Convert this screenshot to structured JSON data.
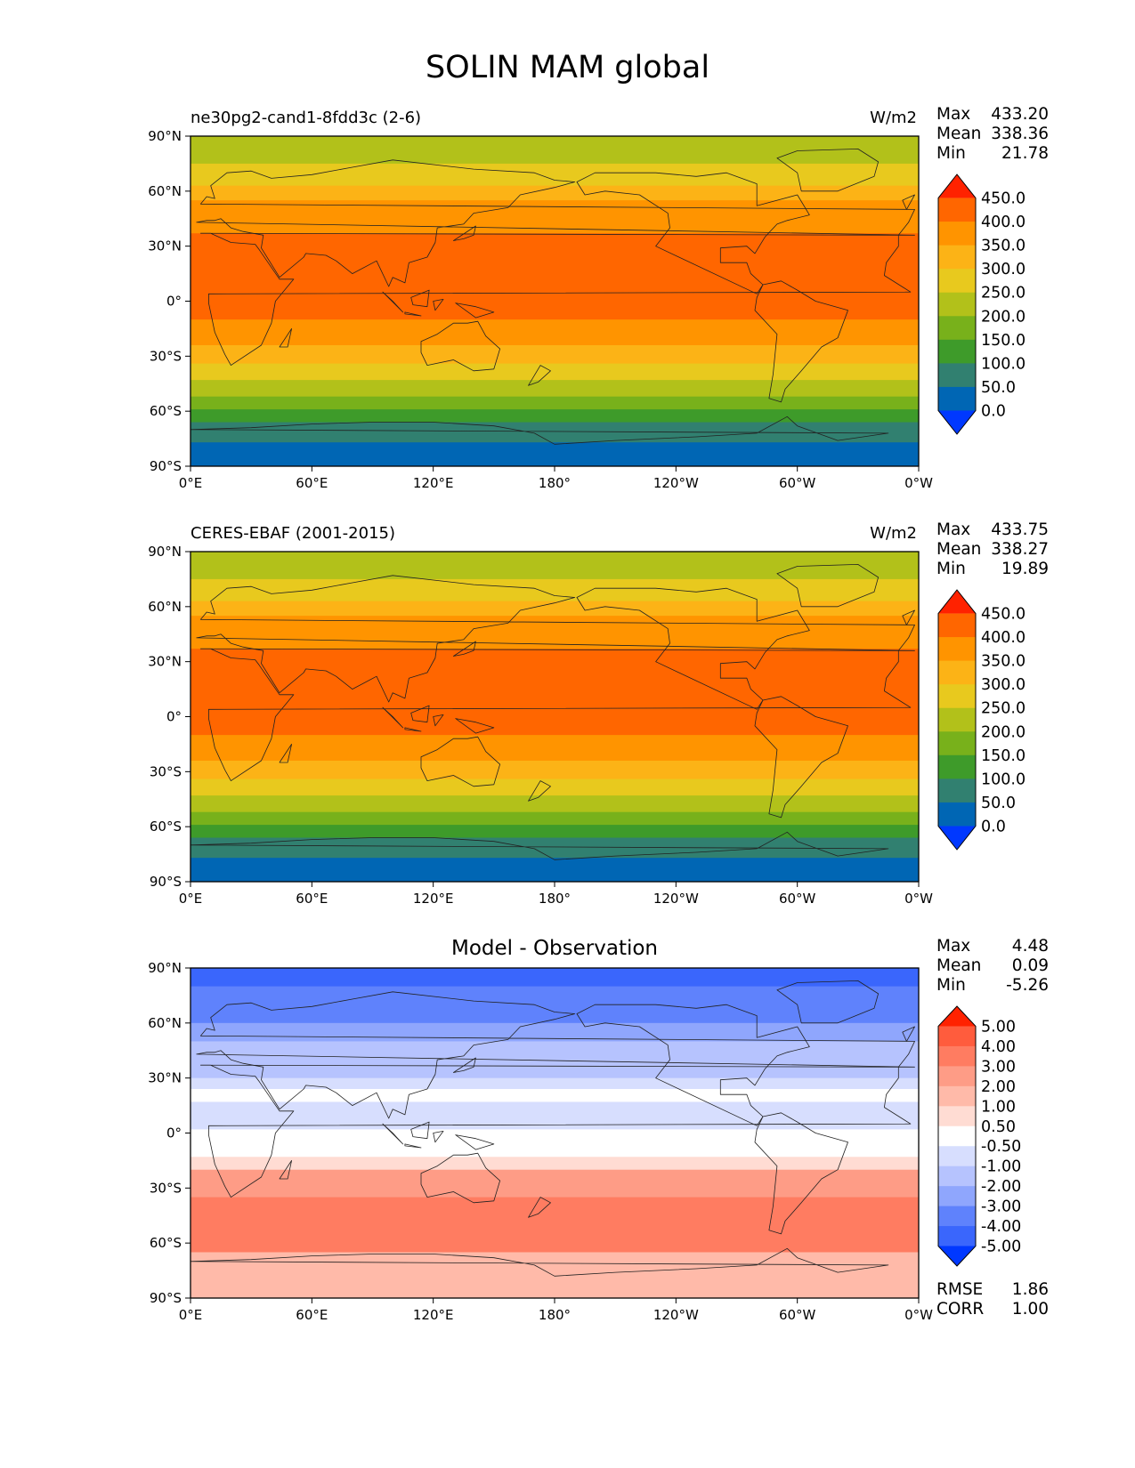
{
  "title": "SOLIN MAM global",
  "panels": [
    {
      "id": "model",
      "title_left": "ne30pg2-cand1-8fdd3c (2-6)",
      "title_center": "",
      "units": "W/m2",
      "stats": [
        {
          "label": "Max",
          "value": "433.20"
        },
        {
          "label": "Mean",
          "value": "338.36"
        },
        {
          "label": "Min",
          "value": "21.78"
        }
      ],
      "colorbar_levels": [
        "450.0",
        "400.0",
        "350.0",
        "300.0",
        "250.0",
        "200.0",
        "150.0",
        "100.0",
        "50.0",
        "0.0"
      ],
      "colorbar_colors": [
        "#ff2200",
        "#ff6600",
        "#ff9400",
        "#fcb316",
        "#e8c91e",
        "#b2c11a",
        "#78b11b",
        "#3e9b2a",
        "#318070",
        "#0066b4",
        "#0038ff"
      ],
      "bands": [
        {
          "lat_top": 90,
          "lat_bottom": 75,
          "color": "#b2c11a"
        },
        {
          "lat_top": 75,
          "lat_bottom": 63,
          "color": "#e8c91e"
        },
        {
          "lat_top": 63,
          "lat_bottom": 55,
          "color": "#fcb316"
        },
        {
          "lat_top": 55,
          "lat_bottom": 37,
          "color": "#ff9400"
        },
        {
          "lat_top": 37,
          "lat_bottom": -10,
          "color": "#ff6600"
        },
        {
          "lat_top": -10,
          "lat_bottom": -24,
          "color": "#ff9400"
        },
        {
          "lat_top": -24,
          "lat_bottom": -34,
          "color": "#fcb316"
        },
        {
          "lat_top": -34,
          "lat_bottom": -43,
          "color": "#e8c91e"
        },
        {
          "lat_top": -43,
          "lat_bottom": -52,
          "color": "#b2c11a"
        },
        {
          "lat_top": -52,
          "lat_bottom": -59,
          "color": "#78b11b"
        },
        {
          "lat_top": -59,
          "lat_bottom": -66,
          "color": "#3e9b2a"
        },
        {
          "lat_top": -66,
          "lat_bottom": -77,
          "color": "#318070"
        },
        {
          "lat_top": -77,
          "lat_bottom": -90,
          "color": "#0066b4"
        }
      ]
    },
    {
      "id": "obs",
      "title_left": "CERES-EBAF (2001-2015)",
      "title_center": "",
      "units": "W/m2",
      "stats": [
        {
          "label": "Max",
          "value": "433.75"
        },
        {
          "label": "Mean",
          "value": "338.27"
        },
        {
          "label": "Min",
          "value": "19.89"
        }
      ],
      "colorbar_levels": [
        "450.0",
        "400.0",
        "350.0",
        "300.0",
        "250.0",
        "200.0",
        "150.0",
        "100.0",
        "50.0",
        "0.0"
      ],
      "colorbar_colors": [
        "#ff2200",
        "#ff6600",
        "#ff9400",
        "#fcb316",
        "#e8c91e",
        "#b2c11a",
        "#78b11b",
        "#3e9b2a",
        "#318070",
        "#0066b4",
        "#0038ff"
      ],
      "bands": [
        {
          "lat_top": 90,
          "lat_bottom": 75,
          "color": "#b2c11a"
        },
        {
          "lat_top": 75,
          "lat_bottom": 63,
          "color": "#e8c91e"
        },
        {
          "lat_top": 63,
          "lat_bottom": 55,
          "color": "#fcb316"
        },
        {
          "lat_top": 55,
          "lat_bottom": 37,
          "color": "#ff9400"
        },
        {
          "lat_top": 37,
          "lat_bottom": -10,
          "color": "#ff6600"
        },
        {
          "lat_top": -10,
          "lat_bottom": -24,
          "color": "#ff9400"
        },
        {
          "lat_top": -24,
          "lat_bottom": -34,
          "color": "#fcb316"
        },
        {
          "lat_top": -34,
          "lat_bottom": -43,
          "color": "#e8c91e"
        },
        {
          "lat_top": -43,
          "lat_bottom": -52,
          "color": "#b2c11a"
        },
        {
          "lat_top": -52,
          "lat_bottom": -59,
          "color": "#78b11b"
        },
        {
          "lat_top": -59,
          "lat_bottom": -66,
          "color": "#3e9b2a"
        },
        {
          "lat_top": -66,
          "lat_bottom": -77,
          "color": "#318070"
        },
        {
          "lat_top": -77,
          "lat_bottom": -90,
          "color": "#0066b4"
        }
      ]
    },
    {
      "id": "diff",
      "title_left": "",
      "title_center": "Model - Observation",
      "units": "",
      "stats": [
        {
          "label": "Max",
          "value": "4.48"
        },
        {
          "label": "Mean",
          "value": "0.09"
        },
        {
          "label": "Min",
          "value": "-5.26"
        }
      ],
      "bottom_stats": [
        {
          "label": "RMSE",
          "value": "1.86"
        },
        {
          "label": "CORR",
          "value": "1.00"
        }
      ],
      "colorbar_levels": [
        "5.00",
        "4.00",
        "3.00",
        "2.00",
        "1.00",
        "0.50",
        "-0.50",
        "-1.00",
        "-2.00",
        "-3.00",
        "-4.00",
        "-5.00"
      ],
      "colorbar_colors": [
        "#ff2200",
        "#ff5c3d",
        "#ff7c61",
        "#fe9c86",
        "#ffbaa9",
        "#ffdcd3",
        "#ffffff",
        "#d7defe",
        "#b6c3fe",
        "#8fa6fd",
        "#5f82fc",
        "#3a66fc",
        "#0038ff"
      ],
      "bands": [
        {
          "lat_top": 90,
          "lat_bottom": 80,
          "color": "#3a66fc"
        },
        {
          "lat_top": 80,
          "lat_bottom": 60,
          "color": "#5f82fc"
        },
        {
          "lat_top": 60,
          "lat_bottom": 50,
          "color": "#8fa6fd"
        },
        {
          "lat_top": 50,
          "lat_bottom": 30,
          "color": "#b6c3fe"
        },
        {
          "lat_top": 30,
          "lat_bottom": 24,
          "color": "#d7defe"
        },
        {
          "lat_top": 24,
          "lat_bottom": 17,
          "color": "#ffffff"
        },
        {
          "lat_top": 17,
          "lat_bottom": 2,
          "color": "#d7defe"
        },
        {
          "lat_top": 2,
          "lat_bottom": -13,
          "color": "#ffffff"
        },
        {
          "lat_top": -13,
          "lat_bottom": -20,
          "color": "#ffdcd3"
        },
        {
          "lat_top": -20,
          "lat_bottom": -35,
          "color": "#fe9c86"
        },
        {
          "lat_top": -35,
          "lat_bottom": -65,
          "color": "#ff7c61"
        },
        {
          "lat_top": -65,
          "lat_bottom": -90,
          "color": "#ffbaa9"
        }
      ]
    }
  ],
  "axes": {
    "lon_ticks": [
      "0°E",
      "60°E",
      "120°E",
      "180°",
      "120°W",
      "60°W",
      "0°W"
    ],
    "lat_ticks": [
      "90°N",
      "60°N",
      "30°N",
      "0°",
      "30°S",
      "60°S",
      "90°S"
    ]
  }
}
